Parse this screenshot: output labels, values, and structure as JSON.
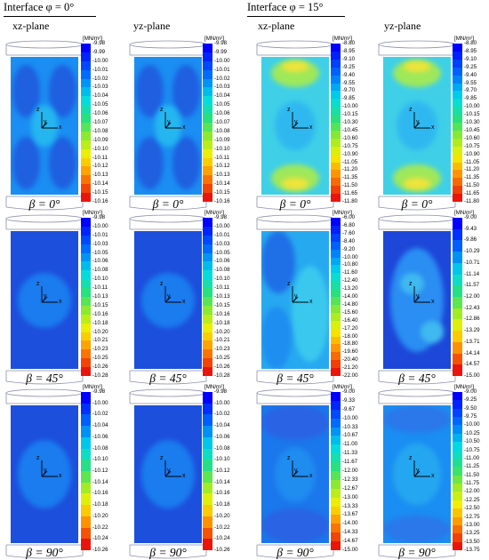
{
  "groups": [
    {
      "title": "Interface φ = 0°",
      "planes": [
        "xz-plane",
        "yz-plane"
      ]
    },
    {
      "title": "Interface φ = 15°",
      "planes": [
        "xz-plane",
        "yz-plane"
      ]
    }
  ],
  "rows": [
    "β = 0°",
    "β = 45°",
    "β = 90°"
  ],
  "unit": "[MN/m²]",
  "axis_labels": {
    "z": "z",
    "y": "y",
    "x": "x"
  },
  "scales": [
    [
      "-9.98",
      "-9.99",
      "-10.00",
      "-10.01",
      "-10.02",
      "-10.03",
      "-10.04",
      "-10.05",
      "-10.06",
      "-10.07",
      "-10.08",
      "-10.09",
      "-10.10",
      "-10.11",
      "-10.12",
      "-10.13",
      "-10.14",
      "-10.15",
      "-10.16"
    ],
    [
      "-9.98",
      "-9.99",
      "-10.00",
      "-10.01",
      "-10.02",
      "-10.03",
      "-10.04",
      "-10.05",
      "-10.06",
      "-10.07",
      "-10.08",
      "-10.09",
      "-10.10",
      "-10.11",
      "-10.12",
      "-10.13",
      "-10.14",
      "-10.15",
      "-10.16"
    ],
    [
      "-8.80",
      "-8.95",
      "-9.10",
      "-9.25",
      "-9.40",
      "-9.55",
      "-9.70",
      "-9.85",
      "-10.00",
      "-10.15",
      "-10.30",
      "-10.45",
      "-10.60",
      "-10.75",
      "-10.90",
      "-11.05",
      "-11.20",
      "-11.35",
      "-11.50",
      "-11.65",
      "-11.80"
    ],
    [
      "-8.80",
      "-8.95",
      "-9.10",
      "-9.25",
      "-9.40",
      "-9.55",
      "-9.70",
      "-9.85",
      "-10.00",
      "-10.15",
      "-10.30",
      "-10.45",
      "-10.60",
      "-10.75",
      "-10.90",
      "-11.05",
      "-11.20",
      "-11.35",
      "-11.50",
      "-11.65",
      "-11.80"
    ],
    [
      "-9.98",
      "-10.00",
      "-10.01",
      "-10.03",
      "-10.05",
      "-10.06",
      "-10.08",
      "-10.10",
      "-10.11",
      "-10.13",
      "-10.15",
      "-10.16",
      "-10.18",
      "-10.20",
      "-10.21",
      "-10.23",
      "-10.25",
      "-10.26",
      "-10.28"
    ],
    [
      "-9.98",
      "-10.00",
      "-10.01",
      "-10.03",
      "-10.05",
      "-10.06",
      "-10.08",
      "-10.10",
      "-10.11",
      "-10.13",
      "-10.15",
      "-10.16",
      "-10.18",
      "-10.20",
      "-10.21",
      "-10.23",
      "-10.25",
      "-10.26",
      "-10.28"
    ],
    [
      "-6.00",
      "-6.80",
      "-7.60",
      "-8.40",
      "-9.20",
      "-10.00",
      "-10.80",
      "-11.60",
      "-12.40",
      "-13.20",
      "-14.00",
      "-14.80",
      "-15.60",
      "-16.40",
      "-17.20",
      "-18.00",
      "-18.80",
      "-19.60",
      "-20.40",
      "-21.20",
      "-22.00"
    ],
    [
      "-9.00",
      "-9.43",
      "-9.86",
      "-10.29",
      "-10.71",
      "-11.14",
      "-11.57",
      "-12.00",
      "-12.43",
      "-12.86",
      "-13.29",
      "-13.71",
      "-14.14",
      "-14.57",
      "-15.00"
    ],
    [
      "-9.98",
      "-10.00",
      "-10.02",
      "-10.04",
      "-10.06",
      "-10.08",
      "-10.10",
      "-10.12",
      "-10.14",
      "-10.16",
      "-10.18",
      "-10.20",
      "-10.22",
      "-10.24",
      "-10.26"
    ],
    [
      "-9.98",
      "-10.00",
      "-10.02",
      "-10.04",
      "-10.06",
      "-10.08",
      "-10.10",
      "-10.12",
      "-10.14",
      "-10.16",
      "-10.18",
      "-10.20",
      "-10.22",
      "-10.24",
      "-10.26"
    ],
    [
      "-9.00",
      "-9.33",
      "-9.67",
      "-10.00",
      "-10.33",
      "-10.67",
      "-11.00",
      "-11.33",
      "-11.67",
      "-12.00",
      "-12.33",
      "-12.67",
      "-13.00",
      "-13.33",
      "-13.67",
      "-14.00",
      "-14.33",
      "-14.67",
      "-15.00"
    ],
    [
      "-9.00",
      "-9.25",
      "-9.50",
      "-9.75",
      "-10.00",
      "-10.25",
      "-10.50",
      "-10.75",
      "-11.00",
      "-11.25",
      "-11.50",
      "-11.75",
      "-12.00",
      "-12.25",
      "-12.50",
      "-12.75",
      "-13.00",
      "-13.25",
      "-13.50",
      "-13.75"
    ]
  ]
}
